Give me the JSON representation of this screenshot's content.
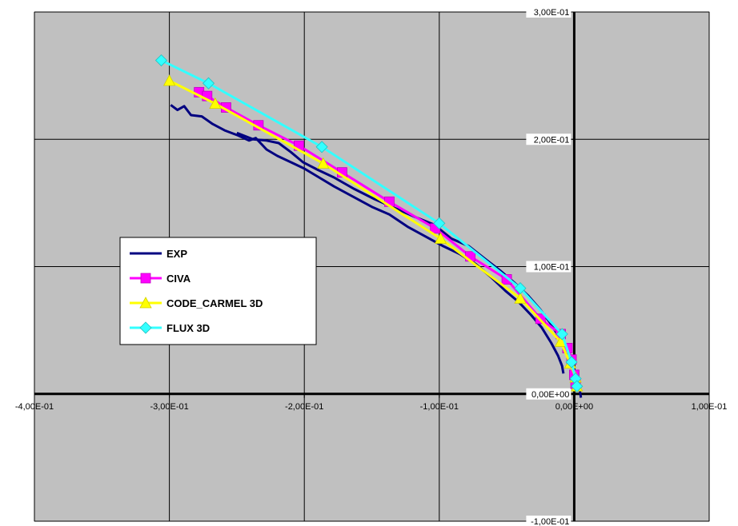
{
  "chart_data": {
    "type": "line",
    "title": "",
    "xlabel": "",
    "ylabel": "",
    "xlim": [
      -0.4,
      0.1
    ],
    "ylim": [
      -0.1,
      0.3
    ],
    "grid": true,
    "plot_background": "#c0c0c0",
    "legend_placement": "center-left",
    "x_tick_labels": [
      "-4,00E-01",
      "-3,00E-01",
      "-2,00E-01",
      "-1,00E-01",
      "0,00E+00",
      "1,00E-01"
    ],
    "y_tick_labels": [
      "3,00E-01",
      "2,00E-01",
      "1,00E-01",
      "0,00E+00",
      "-1,00E-01"
    ],
    "series": [
      {
        "name": "EXP",
        "color": "#000080",
        "marker": "none",
        "curves": [
          {
            "x": [
              -0.299,
              -0.294,
              -0.289,
              -0.284,
              -0.276,
              -0.268,
              -0.259,
              -0.249,
              -0.241,
              -0.236,
              -0.228,
              -0.22,
              -0.21,
              -0.2,
              -0.189,
              -0.178,
              -0.164,
              -0.15,
              -0.137,
              -0.123,
              -0.109,
              -0.097,
              -0.085,
              -0.073,
              -0.062,
              -0.051,
              -0.041,
              -0.032,
              -0.024,
              -0.017,
              -0.012,
              -0.009,
              -0.008
            ],
            "y": [
              0.227,
              0.223,
              0.226,
              0.219,
              0.218,
              0.212,
              0.207,
              0.203,
              0.199,
              0.201,
              0.192,
              0.187,
              0.182,
              0.177,
              0.17,
              0.163,
              0.155,
              0.147,
              0.141,
              0.131,
              0.123,
              0.116,
              0.11,
              0.102,
              0.092,
              0.081,
              0.072,
              0.062,
              0.052,
              0.04,
              0.03,
              0.022,
              0.016
            ]
          },
          {
            "x": [
              -0.25,
              -0.238,
              -0.228,
              -0.219,
              -0.21,
              -0.201,
              -0.19,
              -0.178,
              -0.163,
              -0.148,
              -0.133,
              -0.118,
              -0.104,
              -0.091,
              -0.078,
              -0.066,
              -0.055,
              -0.044,
              -0.034,
              -0.025,
              -0.018,
              -0.012,
              -0.006,
              -0.001,
              0.003,
              0.005
            ],
            "y": [
              0.205,
              0.2,
              0.199,
              0.197,
              0.19,
              0.182,
              0.176,
              0.17,
              0.161,
              0.153,
              0.146,
              0.139,
              0.133,
              0.122,
              0.116,
              0.106,
              0.097,
              0.087,
              0.077,
              0.066,
              0.056,
              0.046,
              0.034,
              0.022,
              0.01,
              -0.003
            ]
          }
        ]
      },
      {
        "name": "CIVA",
        "color": "#ff00ff",
        "marker": "square",
        "x": [
          -0.278,
          -0.272,
          -0.258,
          -0.234,
          -0.204,
          -0.172,
          -0.137,
          -0.103,
          -0.077,
          -0.05,
          -0.025,
          -0.01,
          -0.005,
          -0.002,
          0.0,
          0.001
        ],
        "y": [
          0.237,
          0.234,
          0.225,
          0.211,
          0.195,
          0.174,
          0.151,
          0.13,
          0.108,
          0.09,
          0.059,
          0.047,
          0.036,
          0.027,
          0.015,
          0.008
        ]
      },
      {
        "name": "CODE_CARMEL 3D",
        "color": "#ffff00",
        "marker": "triangle",
        "x": [
          -0.3,
          -0.266,
          -0.186,
          -0.099,
          -0.04,
          -0.01,
          -0.003,
          0.001,
          0.002
        ],
        "y": [
          0.246,
          0.228,
          0.181,
          0.122,
          0.075,
          0.041,
          0.024,
          0.013,
          0.006
        ]
      },
      {
        "name": "FLUX 3D",
        "color": "#33ffff",
        "marker": "diamond",
        "x": [
          -0.306,
          -0.271,
          -0.187,
          -0.1,
          -0.04,
          -0.009,
          -0.002,
          0.001,
          0.002
        ],
        "y": [
          0.262,
          0.244,
          0.194,
          0.134,
          0.083,
          0.047,
          0.025,
          0.012,
          0.006
        ]
      }
    ]
  }
}
